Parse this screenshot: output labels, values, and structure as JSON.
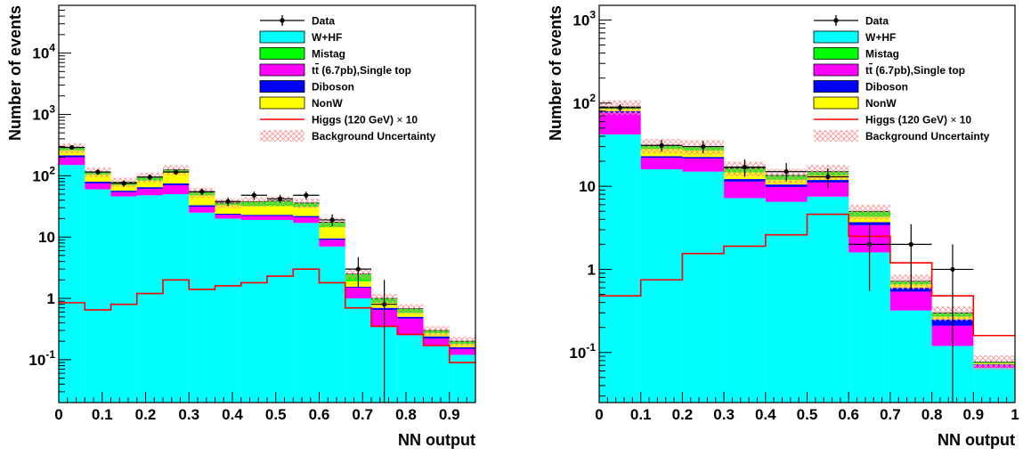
{
  "colors": {
    "W+HF": "#00ffff",
    "Mistag": "#00ff00",
    "ttbar_single_top": "#ff00ff",
    "Diboson": "#0000ff",
    "NonW": "#ffff00",
    "higgs": "#ff0000",
    "uncertainty": "#ff9999",
    "data": "#000000"
  },
  "legend": {
    "data": "Data",
    "whf": "W+HF",
    "mistag": "Mistag",
    "ttbar_prefix": "t",
    "ttbar_suffix": " (6.7pb),Single top",
    "diboson": "Diboson",
    "nonw": "NonW",
    "higgs_prefix": "Higgs (120 GeV)",
    "higgs_suffix": "10",
    "uncertainty": "Background Uncertainty"
  },
  "chart_data": [
    {
      "type": "bar",
      "stacked": true,
      "log_y": true,
      "xlabel": "NN output",
      "ylabel": "Number of events",
      "xlim": [
        0,
        0.96
      ],
      "ylim": [
        0.02,
        60000
      ],
      "x_ticks": [
        "0",
        "0.1",
        "0.2",
        "0.3",
        "0.4",
        "0.5",
        "0.6",
        "0.7",
        "0.8",
        "0.9"
      ],
      "x_tick_values": [
        0,
        0.1,
        0.2,
        0.3,
        0.4,
        0.5,
        0.6,
        0.7,
        0.8,
        0.9
      ],
      "y_ticks": [
        {
          "value": 0.1,
          "mantissa": "10",
          "exp": "-1"
        },
        {
          "value": 1,
          "mantissa": "1",
          "exp": ""
        },
        {
          "value": 10,
          "mantissa": "10",
          "exp": ""
        },
        {
          "value": 100,
          "mantissa": "10",
          "exp": "2"
        },
        {
          "value": 1000,
          "mantissa": "10",
          "exp": "3"
        },
        {
          "value": 10000,
          "mantissa": "10",
          "exp": "4"
        }
      ],
      "bin_edges": [
        0,
        0.06,
        0.12,
        0.18,
        0.24,
        0.3,
        0.36,
        0.42,
        0.48,
        0.54,
        0.6,
        0.66,
        0.72,
        0.78,
        0.84,
        0.9,
        0.96
      ],
      "stack": [
        {
          "name": "W+HF",
          "color_key": "W+HF",
          "values": [
            150,
            60,
            46,
            48,
            50,
            25,
            20,
            19,
            19,
            17,
            7,
            1.0,
            0.35,
            0.25,
            0.17,
            0.12
          ]
        },
        {
          "name": "ttbar",
          "color_key": "ttbar_single_top",
          "values": [
            50,
            15,
            8,
            13,
            20,
            6,
            3,
            3,
            3,
            4,
            2,
            0.5,
            0.3,
            0.22,
            0.05,
            0.03
          ]
        },
        {
          "name": "Diboson",
          "color_key": "Diboson",
          "values": [
            15,
            5,
            3,
            4,
            5,
            2,
            1,
            1,
            1,
            1,
            0.5,
            0.05,
            0.05,
            0.03,
            0.02,
            0.01
          ]
        },
        {
          "name": "NonW",
          "color_key": "NonW",
          "values": [
            45,
            25,
            14,
            18,
            40,
            15,
            9,
            9,
            9,
            9,
            5,
            0.35,
            0.15,
            0.08,
            0.03,
            0.02
          ]
        },
        {
          "name": "Mistag",
          "color_key": "Mistag",
          "values": [
            25,
            10,
            8,
            12,
            10,
            6,
            3,
            6,
            7,
            5,
            3,
            0.6,
            0.15,
            0.1,
            0.03,
            0.02
          ]
        }
      ],
      "uncertainty_frac": 0.18,
      "higgs": [
        0.85,
        0.65,
        0.8,
        1.2,
        2.0,
        1.4,
        1.6,
        1.8,
        2.3,
        3.0,
        1.8,
        0.7,
        0.35,
        0.26,
        0.17,
        0.09
      ],
      "data": [
        {
          "x": 0.03,
          "y": 290,
          "lo": 270,
          "hi": 310
        },
        {
          "x": 0.09,
          "y": 115,
          "lo": 103,
          "hi": 127
        },
        {
          "x": 0.15,
          "y": 75,
          "lo": 66,
          "hi": 84
        },
        {
          "x": 0.21,
          "y": 95,
          "lo": 85,
          "hi": 105
        },
        {
          "x": 0.27,
          "y": 115,
          "lo": 103,
          "hi": 127
        },
        {
          "x": 0.33,
          "y": 55,
          "lo": 48,
          "hi": 62
        },
        {
          "x": 0.39,
          "y": 38,
          "lo": 32,
          "hi": 44
        },
        {
          "x": 0.45,
          "y": 48,
          "lo": 41,
          "hi": 55
        },
        {
          "x": 0.51,
          "y": 42,
          "lo": 36,
          "hi": 49
        },
        {
          "x": 0.57,
          "y": 48,
          "lo": 41,
          "hi": 55
        },
        {
          "x": 0.63,
          "y": 19,
          "lo": 15,
          "hi": 23.5
        },
        {
          "x": 0.69,
          "y": 3,
          "lo": 1.5,
          "hi": 4.7
        },
        {
          "x": 0.75,
          "y": 0.8,
          "lo": 0.001,
          "hi": 2.0
        }
      ]
    },
    {
      "type": "bar",
      "stacked": true,
      "log_y": true,
      "xlabel": "NN output",
      "ylabel": "Number of events",
      "xlim": [
        0,
        1
      ],
      "ylim": [
        0.025,
        1500
      ],
      "x_ticks": [
        "0",
        "0.1",
        "0.2",
        "0.3",
        "0.4",
        "0.5",
        "0.6",
        "0.7",
        "0.8",
        "0.9",
        "1"
      ],
      "x_tick_values": [
        0,
        0.1,
        0.2,
        0.3,
        0.4,
        0.5,
        0.6,
        0.7,
        0.8,
        0.9,
        1.0
      ],
      "y_ticks": [
        {
          "value": 0.1,
          "mantissa": "10",
          "exp": "-1"
        },
        {
          "value": 1,
          "mantissa": "1",
          "exp": ""
        },
        {
          "value": 10,
          "mantissa": "10",
          "exp": ""
        },
        {
          "value": 100,
          "mantissa": "10",
          "exp": "2"
        },
        {
          "value": 1000,
          "mantissa": "10",
          "exp": "3"
        }
      ],
      "bin_edges": [
        0,
        0.1,
        0.2,
        0.3,
        0.4,
        0.5,
        0.6,
        0.7,
        0.8,
        0.9,
        1.0
      ],
      "stack": [
        {
          "name": "W+HF",
          "color_key": "W+HF",
          "values": [
            42,
            16,
            15,
            7.2,
            6.5,
            7.5,
            1.6,
            0.32,
            0.12,
            0.065
          ]
        },
        {
          "name": "ttbar",
          "color_key": "ttbar_single_top",
          "values": [
            35,
            6,
            6.5,
            4.2,
            3.3,
            3.6,
            1.8,
            0.22,
            0.09,
            0.005
          ]
        },
        {
          "name": "Diboson",
          "color_key": "Diboson",
          "values": [
            3,
            1,
            1,
            0.8,
            0.7,
            0.8,
            0.3,
            0.06,
            0.04,
            0.002
          ]
        },
        {
          "name": "NonW",
          "color_key": "NonW",
          "values": [
            5,
            5,
            4.5,
            2.5,
            1.5,
            1.6,
            0.6,
            0.06,
            0.02,
            0.002
          ]
        },
        {
          "name": "Mistag",
          "color_key": "Mistag",
          "values": [
            5,
            3,
            3,
            1.8,
            1.5,
            1.5,
            0.7,
            0.06,
            0.03,
            0.003
          ]
        }
      ],
      "uncertainty_frac": 0.2,
      "higgs": [
        0.48,
        0.75,
        1.55,
        1.9,
        2.6,
        4.6,
        2.5,
        1.2,
        0.48,
        0.16
      ],
      "data": [
        {
          "x": 0.05,
          "y": 88,
          "lo": 79,
          "hi": 97
        },
        {
          "x": 0.15,
          "y": 31,
          "lo": 26,
          "hi": 36
        },
        {
          "x": 0.25,
          "y": 30,
          "lo": 25,
          "hi": 35
        },
        {
          "x": 0.35,
          "y": 17,
          "lo": 13,
          "hi": 21
        },
        {
          "x": 0.45,
          "y": 15,
          "lo": 11.5,
          "hi": 19
        },
        {
          "x": 0.55,
          "y": 13,
          "lo": 9.5,
          "hi": 16.5
        },
        {
          "x": 0.65,
          "y": 2,
          "lo": 0.55,
          "hi": 3.5
        },
        {
          "x": 0.75,
          "y": 2,
          "lo": 0.55,
          "hi": 3.5
        },
        {
          "x": 0.85,
          "y": 1,
          "lo": 0.001,
          "hi": 2.0
        }
      ]
    }
  ]
}
